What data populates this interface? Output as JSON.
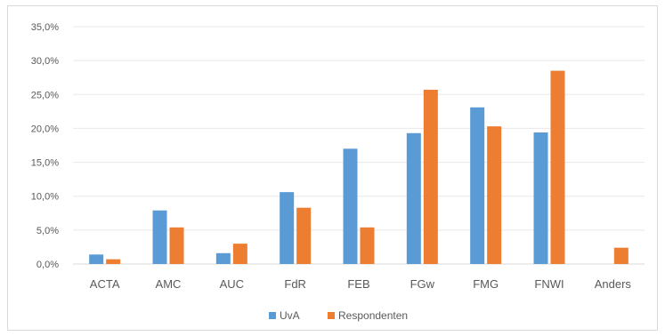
{
  "chart_data": {
    "type": "bar",
    "categories": [
      "ACTA",
      "AMC",
      "AUC",
      "FdR",
      "FEB",
      "FGw",
      "FMG",
      "FNWI",
      "Anders"
    ],
    "series": [
      {
        "name": "UvA",
        "color": "#5b9bd5",
        "values": [
          1.4,
          7.9,
          1.6,
          10.6,
          17.0,
          19.3,
          23.1,
          19.4,
          0.0
        ]
      },
      {
        "name": "Respondenten",
        "color": "#ed7d31",
        "values": [
          0.7,
          5.4,
          3.0,
          8.3,
          5.4,
          25.7,
          20.3,
          28.5,
          2.4
        ]
      }
    ],
    "y_ticks": [
      "0,0%",
      "5,0%",
      "10,0%",
      "15,0%",
      "20,0%",
      "25,0%",
      "30,0%",
      "35,0%"
    ],
    "ylim": [
      0,
      35
    ],
    "grid": true,
    "legend_position": "bottom"
  }
}
